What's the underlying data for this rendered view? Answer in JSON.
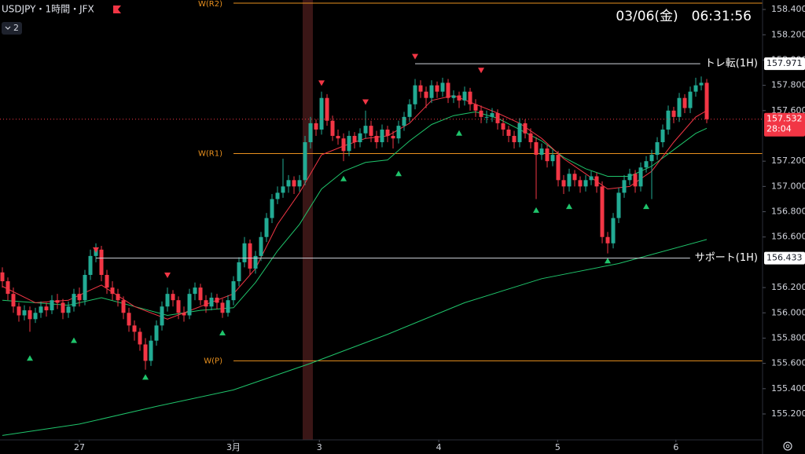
{
  "chart_data": {
    "type": "candlestick",
    "title": "USDJPY・1時間・JFX",
    "indicators": "2",
    "datetime": "03/06(金)　06:31:56",
    "up_color": "#22ab94",
    "down_color": "#f23645",
    "xlim": [
      -0.43,
      138.14
    ],
    "ylim": [
      154.995,
      158.475
    ],
    "xticks": [
      {
        "value": 14,
        "label": "27"
      },
      {
        "value": 42,
        "label": "3月"
      },
      {
        "value": 57.6,
        "label": "3"
      },
      {
        "value": 79.3,
        "label": "4"
      },
      {
        "value": 100.9,
        "label": "5"
      },
      {
        "value": 122.4,
        "label": "6"
      }
    ],
    "yticks": [
      {
        "value": 155.2,
        "label": "155.200"
      },
      {
        "value": 155.4,
        "label": "155.400"
      },
      {
        "value": 155.6,
        "label": "155.600"
      },
      {
        "value": 155.8,
        "label": "155.800"
      },
      {
        "value": 156.0,
        "label": "156.000"
      },
      {
        "value": 156.2,
        "label": "156.200"
      },
      {
        "value": 156.6,
        "label": "156.600"
      },
      {
        "value": 156.8,
        "label": "156.800"
      },
      {
        "value": 157.0,
        "label": "157.000"
      },
      {
        "value": 157.2,
        "label": "157.200"
      },
      {
        "value": 157.6,
        "label": "157.600"
      },
      {
        "value": 157.8,
        "label": "157.800"
      },
      {
        "value": 158.0,
        "label": "158.000"
      },
      {
        "value": 158.2,
        "label": "158.200"
      },
      {
        "value": 158.4,
        "label": "158.400"
      }
    ],
    "candles": [
      [
        156.32,
        156.36,
        156.2,
        156.25
      ],
      [
        156.25,
        156.28,
        156.1,
        156.15
      ],
      [
        156.15,
        156.2,
        156.0,
        156.05
      ],
      [
        156.05,
        156.08,
        155.93,
        155.98
      ],
      [
        155.98,
        156.06,
        155.94,
        156.02
      ],
      [
        156.02,
        156.05,
        155.85,
        155.95
      ],
      [
        155.95,
        156.04,
        155.92,
        156.0
      ],
      [
        156.0,
        156.09,
        155.96,
        156.05
      ],
      [
        156.05,
        156.08,
        155.97,
        156.02
      ],
      [
        156.02,
        156.14,
        155.99,
        156.1
      ],
      [
        156.1,
        156.15,
        156.03,
        156.08
      ],
      [
        156.08,
        156.11,
        155.95,
        156.0
      ],
      [
        156.0,
        156.09,
        155.96,
        156.05
      ],
      [
        156.05,
        156.19,
        156.01,
        156.15
      ],
      [
        156.15,
        156.2,
        156.05,
        156.1
      ],
      [
        156.1,
        156.34,
        156.06,
        156.3
      ],
      [
        156.3,
        156.5,
        156.26,
        156.45
      ],
      [
        156.45,
        156.55,
        156.4,
        156.5
      ],
      [
        156.5,
        156.53,
        156.25,
        156.3
      ],
      [
        156.3,
        156.34,
        156.15,
        156.2
      ],
      [
        156.2,
        156.25,
        156.1,
        156.15
      ],
      [
        156.15,
        156.19,
        156.05,
        156.1
      ],
      [
        156.1,
        156.13,
        155.95,
        156.0
      ],
      [
        156.0,
        156.04,
        155.85,
        155.9
      ],
      [
        155.9,
        155.94,
        155.78,
        155.85
      ],
      [
        155.85,
        155.88,
        155.7,
        155.75
      ],
      [
        155.75,
        155.8,
        155.55,
        155.62
      ],
      [
        155.62,
        155.82,
        155.58,
        155.78
      ],
      [
        155.78,
        155.94,
        155.74,
        155.9
      ],
      [
        155.9,
        156.09,
        155.86,
        156.05
      ],
      [
        156.05,
        156.2,
        156.01,
        156.15
      ],
      [
        156.15,
        156.18,
        156.05,
        156.1
      ],
      [
        156.1,
        156.13,
        155.95,
        156.0
      ],
      [
        156.0,
        156.05,
        155.93,
        155.98
      ],
      [
        155.98,
        156.19,
        155.95,
        156.15
      ],
      [
        156.15,
        156.24,
        156.1,
        156.2
      ],
      [
        156.2,
        156.23,
        156.06,
        156.1
      ],
      [
        156.1,
        156.14,
        156.0,
        156.05
      ],
      [
        156.05,
        156.16,
        156.02,
        156.12
      ],
      [
        156.12,
        156.15,
        156.03,
        156.08
      ],
      [
        156.08,
        156.11,
        155.96,
        156.0
      ],
      [
        156.0,
        156.14,
        155.97,
        156.1
      ],
      [
        156.1,
        156.29,
        156.06,
        156.25
      ],
      [
        156.25,
        156.44,
        156.21,
        156.4
      ],
      [
        156.4,
        156.6,
        156.36,
        156.55
      ],
      [
        156.55,
        156.58,
        156.3,
        156.35
      ],
      [
        156.35,
        156.49,
        156.31,
        156.45
      ],
      [
        156.45,
        156.64,
        156.41,
        156.6
      ],
      [
        156.6,
        156.79,
        156.56,
        156.75
      ],
      [
        156.75,
        156.94,
        156.71,
        156.9
      ],
      [
        156.9,
        157.0,
        156.86,
        156.95
      ],
      [
        156.95,
        157.22,
        156.91,
        157.0
      ],
      [
        157.0,
        157.09,
        156.95,
        157.05
      ],
      [
        157.05,
        157.08,
        156.94,
        157.0
      ],
      [
        157.0,
        157.09,
        156.96,
        157.05
      ],
      [
        157.05,
        157.4,
        157.01,
        157.35
      ],
      [
        157.35,
        157.55,
        157.3,
        157.5
      ],
      [
        157.5,
        157.53,
        157.4,
        157.45
      ],
      [
        157.45,
        157.75,
        157.41,
        157.7
      ],
      [
        157.7,
        157.73,
        157.48,
        157.52
      ],
      [
        157.52,
        157.56,
        157.36,
        157.4
      ],
      [
        157.4,
        157.45,
        157.33,
        157.38
      ],
      [
        157.38,
        157.42,
        157.2,
        157.28
      ],
      [
        157.28,
        157.44,
        157.24,
        157.4
      ],
      [
        157.4,
        157.43,
        157.3,
        157.35
      ],
      [
        157.35,
        157.46,
        157.31,
        157.42
      ],
      [
        157.42,
        157.6,
        157.38,
        157.48
      ],
      [
        157.48,
        157.52,
        157.35,
        157.4
      ],
      [
        157.4,
        157.44,
        157.3,
        157.35
      ],
      [
        157.35,
        157.49,
        157.31,
        157.45
      ],
      [
        157.45,
        157.48,
        157.35,
        157.4
      ],
      [
        157.4,
        157.44,
        157.3,
        157.38
      ],
      [
        157.38,
        157.52,
        157.34,
        157.48
      ],
      [
        157.48,
        157.59,
        157.44,
        157.55
      ],
      [
        157.55,
        157.69,
        157.51,
        157.65
      ],
      [
        157.65,
        157.85,
        157.61,
        157.8
      ],
      [
        157.8,
        157.84,
        157.7,
        157.75
      ],
      [
        157.75,
        157.79,
        157.62,
        157.7
      ],
      [
        157.7,
        157.84,
        157.66,
        157.8
      ],
      [
        157.8,
        157.83,
        157.7,
        157.75
      ],
      [
        157.75,
        157.86,
        157.71,
        157.82
      ],
      [
        157.82,
        157.85,
        157.66,
        157.7
      ],
      [
        157.7,
        157.76,
        157.66,
        157.72
      ],
      [
        157.72,
        157.75,
        157.62,
        157.68
      ],
      [
        157.68,
        157.79,
        157.64,
        157.75
      ],
      [
        157.75,
        157.78,
        157.6,
        157.65
      ],
      [
        157.65,
        157.69,
        157.55,
        157.6
      ],
      [
        157.6,
        157.64,
        157.5,
        157.55
      ],
      [
        157.55,
        157.6,
        157.5,
        157.55
      ],
      [
        157.55,
        157.62,
        157.51,
        157.58
      ],
      [
        157.58,
        157.61,
        157.45,
        157.5
      ],
      [
        157.5,
        157.54,
        157.4,
        157.45
      ],
      [
        157.45,
        157.48,
        157.35,
        157.4
      ],
      [
        157.4,
        157.44,
        157.3,
        157.35
      ],
      [
        157.35,
        157.54,
        157.31,
        157.5
      ],
      [
        157.5,
        157.53,
        157.38,
        157.42
      ],
      [
        157.42,
        157.46,
        157.3,
        157.35
      ],
      [
        157.35,
        157.39,
        156.9,
        157.25
      ],
      [
        157.25,
        157.34,
        157.21,
        157.3
      ],
      [
        157.3,
        157.33,
        157.15,
        157.2
      ],
      [
        157.2,
        157.29,
        157.16,
        157.25
      ],
      [
        157.25,
        157.28,
        157.0,
        157.05
      ],
      [
        157.05,
        157.09,
        156.94,
        157.0
      ],
      [
        157.0,
        157.14,
        156.96,
        157.1
      ],
      [
        157.1,
        157.13,
        157.0,
        157.05
      ],
      [
        157.05,
        157.08,
        156.95,
        157.0
      ],
      [
        157.0,
        157.09,
        156.96,
        157.05
      ],
      [
        157.05,
        157.12,
        157.01,
        157.08
      ],
      [
        157.08,
        157.11,
        156.95,
        157.0
      ],
      [
        157.0,
        157.04,
        156.55,
        156.6
      ],
      [
        156.6,
        156.64,
        156.47,
        156.55
      ],
      [
        156.55,
        156.79,
        156.51,
        156.75
      ],
      [
        156.75,
        156.99,
        156.71,
        156.95
      ],
      [
        156.95,
        157.09,
        156.91,
        157.05
      ],
      [
        157.05,
        157.14,
        157.01,
        157.1
      ],
      [
        157.1,
        157.13,
        156.95,
        157.0
      ],
      [
        157.0,
        157.19,
        156.96,
        157.15
      ],
      [
        157.15,
        157.24,
        157.11,
        157.2
      ],
      [
        157.2,
        157.29,
        156.9,
        157.25
      ],
      [
        157.25,
        157.39,
        157.21,
        157.35
      ],
      [
        157.35,
        157.49,
        157.31,
        157.45
      ],
      [
        157.45,
        157.64,
        157.41,
        157.6
      ],
      [
        157.6,
        157.63,
        157.5,
        157.55
      ],
      [
        157.55,
        157.74,
        157.51,
        157.7
      ],
      [
        157.7,
        157.73,
        157.58,
        157.62
      ],
      [
        157.62,
        157.79,
        157.58,
        157.75
      ],
      [
        157.75,
        157.86,
        157.71,
        157.8
      ],
      [
        157.8,
        157.87,
        157.76,
        157.82
      ],
      [
        157.82,
        157.85,
        157.5,
        157.532
      ]
    ],
    "lines": [
      {
        "color": "#1fc46b",
        "x": [
          0,
          14,
          28,
          42,
          56,
          70,
          84,
          98,
          112,
          128
        ],
        "values": [
          155.03,
          155.12,
          155.26,
          155.39,
          155.6,
          155.83,
          156.08,
          156.27,
          156.39,
          156.58
        ]
      },
      {
        "color": "#1fc46b",
        "x": [
          0,
          6,
          12,
          18,
          24,
          30,
          36,
          42,
          46,
          50,
          54,
          58,
          62,
          66,
          70,
          74,
          78,
          82,
          86,
          90,
          94,
          98,
          102,
          106,
          110,
          114,
          118,
          122,
          126,
          128
        ],
        "values": [
          156.1,
          156.08,
          156.06,
          156.12,
          156.05,
          155.98,
          156.02,
          156.04,
          156.24,
          156.49,
          156.7,
          156.98,
          157.12,
          157.19,
          157.21,
          157.36,
          157.49,
          157.56,
          157.59,
          157.54,
          157.45,
          157.36,
          157.23,
          157.14,
          157.08,
          157.08,
          157.16,
          157.29,
          157.42,
          157.46
        ]
      },
      {
        "color": "#f23645",
        "x": [
          0,
          6,
          12,
          18,
          24,
          30,
          36,
          42,
          46,
          50,
          54,
          58,
          62,
          66,
          70,
          74,
          78,
          82,
          86,
          90,
          94,
          98,
          102,
          106,
          110,
          114,
          118,
          122,
          126,
          128
        ],
        "values": [
          156.21,
          156.08,
          156.1,
          156.22,
          156.05,
          155.95,
          156.05,
          156.15,
          156.35,
          156.7,
          156.95,
          157.25,
          157.32,
          157.38,
          157.4,
          157.5,
          157.68,
          157.72,
          157.65,
          157.58,
          157.5,
          157.38,
          157.22,
          157.1,
          156.98,
          157.0,
          157.12,
          157.35,
          157.55,
          157.6
        ]
      }
    ],
    "sell_signals": {
      "color": "#f23645",
      "x": [
        17,
        30,
        58,
        66,
        75,
        87
      ],
      "values": [
        156.5,
        156.3,
        157.82,
        157.67,
        158.03,
        157.92
      ]
    },
    "buy_signals": {
      "color": "#1fc46b",
      "x": [
        5,
        13,
        26,
        40,
        62,
        72,
        83,
        97,
        103,
        110,
        117
      ],
      "values": [
        155.64,
        155.78,
        155.49,
        155.84,
        157.06,
        157.1,
        157.42,
        156.81,
        156.84,
        156.41,
        156.84
      ]
    },
    "levels": [
      {
        "label": "W(R2)",
        "value": 158.45,
        "x": 42,
        "color": "#e8901e"
      },
      {
        "label": "W(R1)",
        "value": 157.26,
        "x": 42,
        "color": "#e8901e"
      },
      {
        "label": "W(P)",
        "value": 155.62,
        "x": 42,
        "color": "#e8901e"
      }
    ],
    "trendlines": [
      {
        "label": "トレ転(1H)",
        "value": 157.971,
        "x": 75,
        "color": "#d1d4dc"
      },
      {
        "label": "サポート(1H)",
        "value": 156.433,
        "x": 17,
        "color": "#d1d4dc"
      }
    ],
    "last": {
      "value": 157.532,
      "countdown": "28:04",
      "color": "#f23645"
    }
  }
}
